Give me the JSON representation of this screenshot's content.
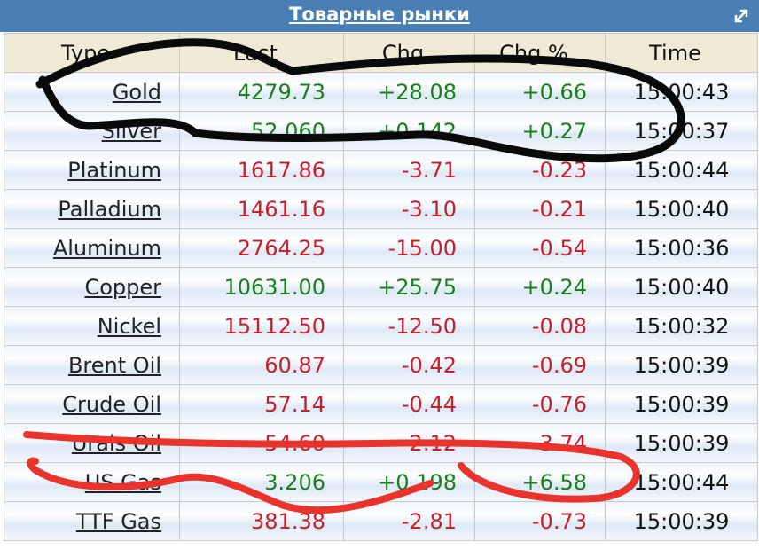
{
  "header": {
    "title": "Товарные рынки"
  },
  "table": {
    "columns": [
      "Type",
      "Last",
      "Chg",
      "Chg %",
      "Time"
    ],
    "rows": [
      {
        "cells": [
          "Gold",
          "4279.73",
          "+28.08",
          "+0.66",
          "15:00:43"
        ],
        "color": "#1b7d1b"
      },
      {
        "cells": [
          "Silver",
          "52.060",
          "+0.142",
          "+0.27",
          "15:00:37"
        ],
        "color": "#1b7d1b"
      },
      {
        "cells": [
          "Platinum",
          "1617.86",
          "-3.71",
          "-0.23",
          "15:00:44"
        ],
        "color": "#c4202c"
      },
      {
        "cells": [
          "Palladium",
          "1461.16",
          "-3.10",
          "-0.21",
          "15:00:40"
        ],
        "color": "#c4202c"
      },
      {
        "cells": [
          "Aluminum",
          "2764.25",
          "-15.00",
          "-0.54",
          "15:00:36"
        ],
        "color": "#c4202c"
      },
      {
        "cells": [
          "Copper",
          "10631.00",
          "+25.75",
          "+0.24",
          "15:00:40"
        ],
        "color": "#1b7d1b"
      },
      {
        "cells": [
          "Nickel",
          "15112.50",
          "-12.50",
          "-0.08",
          "15:00:32"
        ],
        "color": "#c4202c"
      },
      {
        "cells": [
          "Brent Oil",
          "60.87",
          "-0.42",
          "-0.69",
          "15:00:39"
        ],
        "color": "#c4202c"
      },
      {
        "cells": [
          "Crude Oil",
          "57.14",
          "-0.44",
          "-0.76",
          "15:00:39"
        ],
        "color": "#c4202c"
      },
      {
        "cells": [
          "Urals Oil",
          "54.60",
          "-2.12",
          "-3.74",
          "15:00:39"
        ],
        "color": "#c4202c"
      },
      {
        "cells": [
          "US Gas",
          "3.206",
          "+0.198",
          "+6.58",
          "15:00:44"
        ],
        "color": "#1b7d1b"
      },
      {
        "cells": [
          "TTF Gas",
          "381.38",
          "-2.81",
          "-0.73",
          "15:00:39"
        ],
        "color": "#c4202c"
      }
    ]
  }
}
